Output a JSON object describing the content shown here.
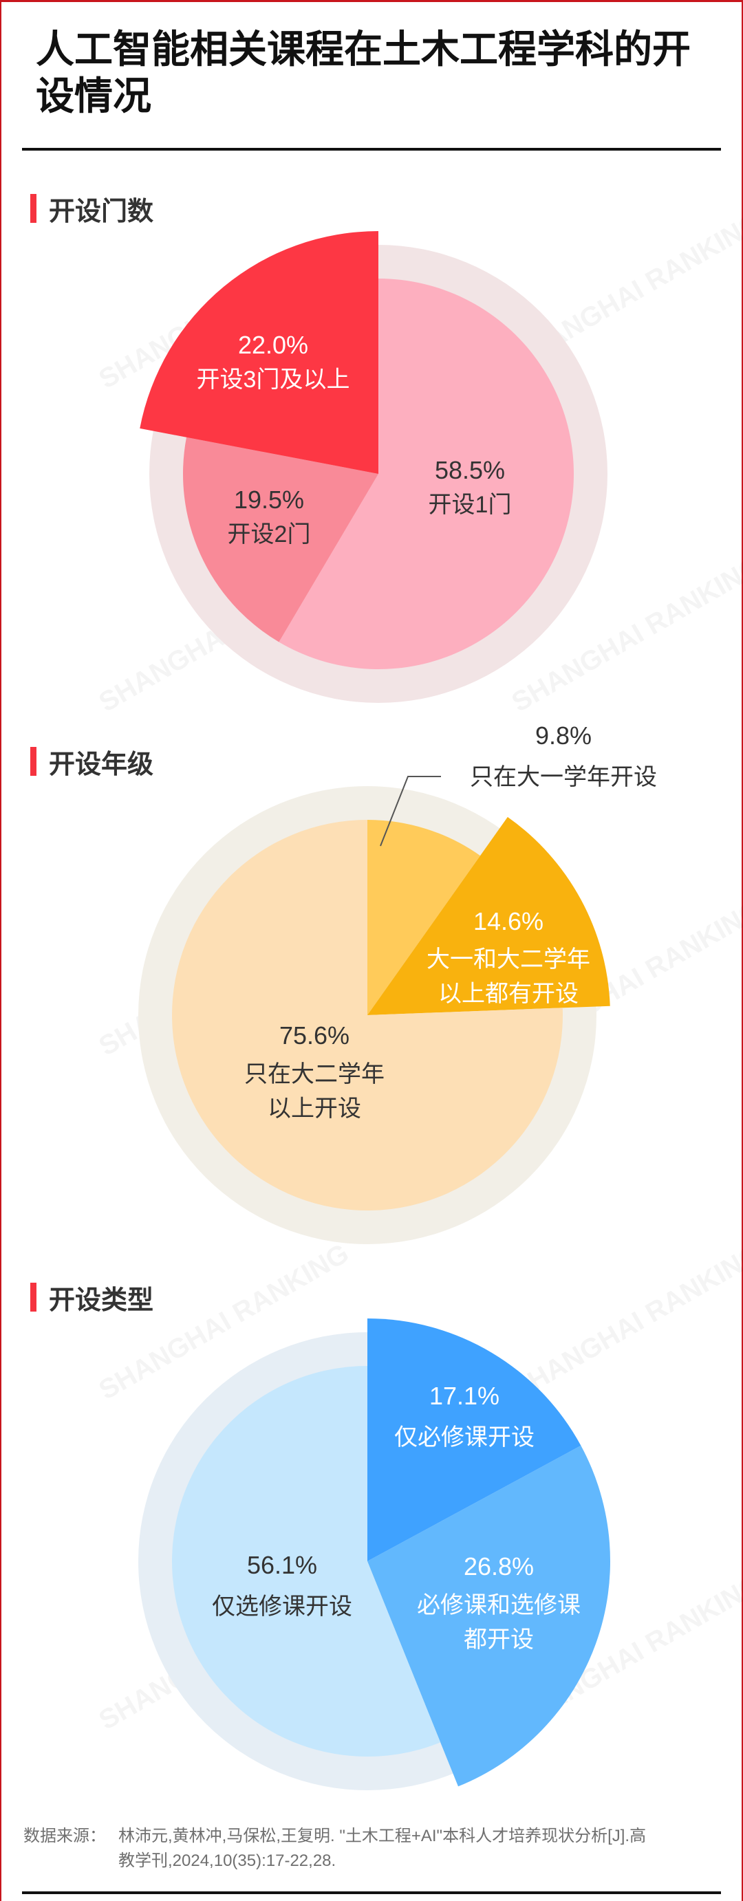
{
  "header": {
    "title": "人工智能相关课程在土木工程学科的开设情况"
  },
  "watermark": "SHANGHAI RANKING",
  "colors": {
    "accent": "#F5333F",
    "frame": "#C8161D"
  },
  "chart_data": [
    {
      "type": "pie",
      "title": "开设门数",
      "ring_color": "#F2E4E5",
      "slices": [
        {
          "pct_label": "58.5%",
          "label": [
            "开设1门"
          ],
          "value": 58.5,
          "color": "#FDAFBF",
          "highlight": false
        },
        {
          "pct_label": "19.5%",
          "label": [
            "开设2门"
          ],
          "value": 19.5,
          "color": "#F98A98",
          "highlight": false
        },
        {
          "pct_label": "22.0%",
          "label": [
            "开设3门及以上"
          ],
          "value": 22.0,
          "color": "#FD3744",
          "highlight": true
        }
      ]
    },
    {
      "type": "pie",
      "title": "开设年级",
      "ring_color": "#F2EFE7",
      "slices": [
        {
          "pct_label": "9.8%",
          "label": [
            "只在大一学年开设"
          ],
          "value": 9.8,
          "color": "#FFCB5A",
          "highlight": false
        },
        {
          "pct_label": "14.6%",
          "label": [
            "大一和大二学年",
            "以上都有开设"
          ],
          "value": 14.6,
          "color": "#F9B20E",
          "highlight": true
        },
        {
          "pct_label": "75.6%",
          "label": [
            "只在大二学年",
            "以上开设"
          ],
          "value": 75.6,
          "color": "#FDDFB5",
          "highlight": false
        }
      ]
    },
    {
      "type": "pie",
      "title": "开设类型",
      "ring_color": "#E6EEF5",
      "slices": [
        {
          "pct_label": "17.1%",
          "label": [
            "仅必修课开设"
          ],
          "value": 17.1,
          "color": "#3FA2FF",
          "highlight": true
        },
        {
          "pct_label": "26.8%",
          "label": [
            "必修课和选修课",
            "都开设"
          ],
          "value": 26.8,
          "color": "#62B8FD",
          "highlight": true
        },
        {
          "pct_label": "56.1%",
          "label": [
            "仅选修课开设"
          ],
          "value": 56.1,
          "color": "#C5E7FD",
          "highlight": false
        }
      ]
    }
  ],
  "footer": {
    "source_label": "数据来源：",
    "source_lines": [
      "林沛元,黄林冲,马保松,王复明. \"土木工程+AI\"本科人才培养现状分析[J].高",
      "教学刊,2024,10(35):17-22,28."
    ]
  }
}
